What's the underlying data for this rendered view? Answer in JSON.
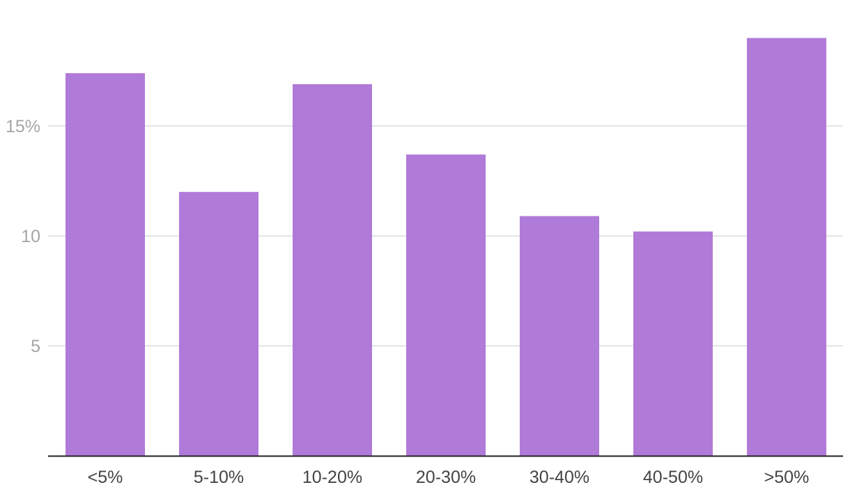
{
  "chart_data": {
    "type": "bar",
    "categories": [
      "<5%",
      "5-10%",
      "10-20%",
      "20-30%",
      "30-40%",
      "40-50%",
      ">50%"
    ],
    "values": [
      17.4,
      12.0,
      16.9,
      13.7,
      10.9,
      10.2,
      19.0
    ],
    "ylim": [
      0,
      20
    ],
    "y_ticks": [
      5,
      10,
      15
    ],
    "y_tick_labels": [
      "5",
      "10",
      "15%"
    ],
    "grid": true,
    "colors": {
      "bar": "#b07ad9",
      "grid": "#dcdcdc",
      "axis": "#222222"
    }
  }
}
